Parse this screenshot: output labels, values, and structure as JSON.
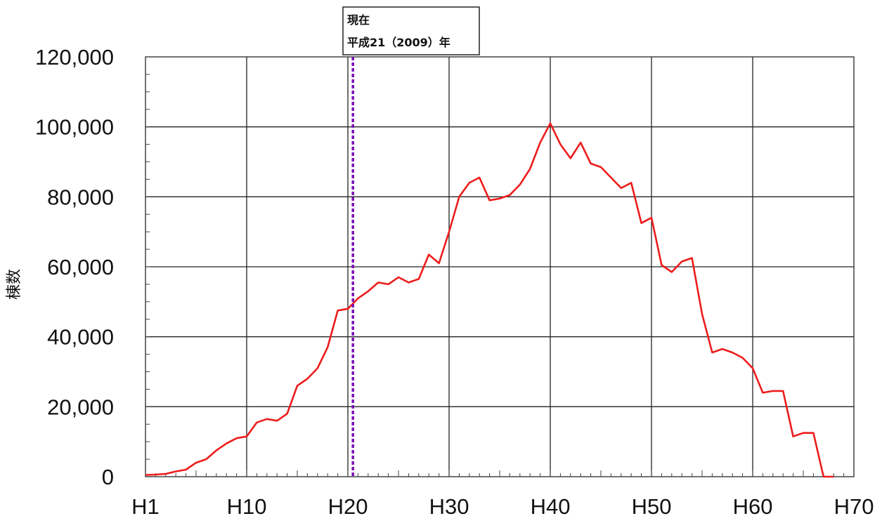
{
  "chart_data": {
    "type": "line",
    "title": "",
    "xlabel": "",
    "ylabel": "棟数",
    "xlim": [
      0,
      70
    ],
    "ylim": [
      0,
      120000
    ],
    "x_ticks": [
      {
        "value": 0,
        "label": "H1"
      },
      {
        "value": 10,
        "label": "H10"
      },
      {
        "value": 20,
        "label": "H20"
      },
      {
        "value": 30,
        "label": "H30"
      },
      {
        "value": 40,
        "label": "H40"
      },
      {
        "value": 50,
        "label": "H50"
      },
      {
        "value": 60,
        "label": "H60"
      },
      {
        "value": 70,
        "label": "H70"
      }
    ],
    "y_ticks": [
      {
        "value": 0,
        "label": "0"
      },
      {
        "value": 20000,
        "label": "20,000"
      },
      {
        "value": 40000,
        "label": "40,000"
      },
      {
        "value": 60000,
        "label": "60,000"
      },
      {
        "value": 80000,
        "label": "80,000"
      },
      {
        "value": 100000,
        "label": "100,000"
      },
      {
        "value": 120000,
        "label": "120,000"
      }
    ],
    "grid": true,
    "series": [
      {
        "color": "#ee1c1c",
        "x": [
          0,
          1,
          2,
          3,
          4,
          5,
          6,
          7,
          8,
          9,
          10,
          11,
          12,
          13,
          14,
          15,
          16,
          17,
          18,
          19,
          20,
          21,
          22,
          23,
          24,
          25,
          26,
          27,
          28,
          29,
          30,
          31,
          32,
          33,
          34,
          35,
          36,
          37,
          38,
          39,
          40,
          41,
          42,
          43,
          44,
          45,
          46,
          47,
          48,
          49,
          50,
          51,
          52,
          53,
          54,
          55,
          56,
          57,
          58,
          59,
          60,
          61,
          62,
          63,
          64,
          65,
          66,
          67,
          68
        ],
        "values": [
          500,
          600,
          800,
          1500,
          2000,
          4000,
          5000,
          7500,
          9500,
          11000,
          11500,
          15500,
          16500,
          16000,
          18000,
          26000,
          28000,
          31000,
          37000,
          47500,
          48000,
          51000,
          53000,
          55500,
          55000,
          57000,
          55500,
          56500,
          63500,
          61000,
          70000,
          80000,
          84000,
          85500,
          79000,
          79500,
          80500,
          83500,
          88000,
          95500,
          101000,
          95000,
          91000,
          95500,
          89500,
          88500,
          85500,
          82500,
          84000,
          72500,
          74000,
          60500,
          58500,
          61500,
          62500,
          46500,
          35500,
          36500,
          35500,
          34000,
          31000,
          24000,
          24500,
          24500,
          11500,
          12500,
          12500,
          0,
          0
        ]
      }
    ],
    "annotations": [
      {
        "x": 20.5,
        "line1": "現在",
        "line2": "平成21（2009）年",
        "line_color": "#7a0fb8"
      }
    ]
  }
}
